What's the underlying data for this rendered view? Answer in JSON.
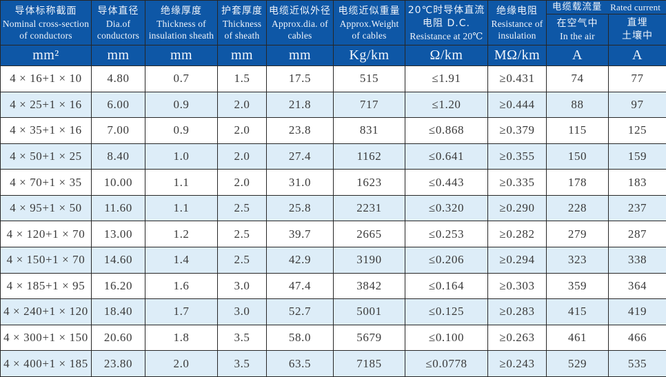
{
  "table": {
    "columns": [
      {
        "zh": "导体标称截面",
        "en": "Nominal cross-section of conductors",
        "unit": "mm²"
      },
      {
        "zh": "导体直径",
        "en": "Dia.of conductors",
        "unit": "mm"
      },
      {
        "zh": "绝缘厚度",
        "en": "Thickness of insulation sheath",
        "unit": "mm"
      },
      {
        "zh": "护套厚度",
        "en": "Thickness of sheath",
        "unit": "mm"
      },
      {
        "zh": "电缆近似外径",
        "en": "Approx.dia. of cables",
        "unit": "mm"
      },
      {
        "zh": "电缆近似重量",
        "en": "Approx.Weight of cables",
        "unit": "Kg/km"
      },
      {
        "zh": "20℃时导体直流电阻 D.C.",
        "en": "Resistance at 20℃",
        "unit": "Ω/km"
      },
      {
        "zh": "绝缘电阻",
        "en": "Resistance of insulation",
        "unit": "MΩ/km"
      }
    ],
    "rated_group": {
      "zh": "电缆载流量",
      "en": "Rated current",
      "sub": [
        {
          "zh": "在空气中",
          "en": "In the air",
          "unit": "A"
        },
        {
          "zh": "直埋",
          "en": "土壤中",
          "unit": "A"
        }
      ]
    },
    "rows": [
      [
        "4 × 16+1 × 10",
        "4.80",
        "0.7",
        "1.5",
        "17.5",
        "515",
        "≤1.91",
        "≥0.431",
        "74",
        "77"
      ],
      [
        "4 × 25+1 × 16",
        "6.00",
        "0.9",
        "2.0",
        "21.8",
        "717",
        "≤1.20",
        "≥0.444",
        "88",
        "97"
      ],
      [
        "4 × 35+1 × 16",
        "7.00",
        "0.9",
        "2.0",
        "23.8",
        "831",
        "≤0.868",
        "≥0.379",
        "115",
        "125"
      ],
      [
        "4 × 50+1 × 25",
        "8.40",
        "1.0",
        "2.0",
        "27.4",
        "1162",
        "≤0.641",
        "≥0.355",
        "150",
        "159"
      ],
      [
        "4 × 70+1 × 35",
        "10.00",
        "1.1",
        "2.0",
        "31.0",
        "1623",
        "≤0.443",
        "≥0.335",
        "178",
        "183"
      ],
      [
        "4 × 95+1 × 50",
        "11.60",
        "1.1",
        "2.5",
        "25.8",
        "2231",
        "≤0.320",
        "≥0.290",
        "228",
        "237"
      ],
      [
        "4 × 120+1 × 70",
        "13.00",
        "1.2",
        "2.5",
        "39.7",
        "2665",
        "≤0.253",
        "≥0.282",
        "279",
        "287"
      ],
      [
        "4 × 150+1 × 70",
        "14.60",
        "1.4",
        "2.5",
        "42.9",
        "3190",
        "≤0.206",
        "≥0.294",
        "323",
        "338"
      ],
      [
        "4 × 185+1 × 95",
        "16.20",
        "1.6",
        "3.0",
        "47.4",
        "3842",
        "≤0.164",
        "≥0.303",
        "359",
        "364"
      ],
      [
        "4 × 240+1 × 120",
        "18.40",
        "1.7",
        "3.0",
        "52.7",
        "5001",
        "≤0.125",
        "≥0.283",
        "415",
        "419"
      ],
      [
        "4 × 300+1 × 150",
        "20.60",
        "1.8",
        "3.5",
        "58.0",
        "5679",
        "≤0.100",
        "≥0.263",
        "461",
        "466"
      ],
      [
        "4 × 400+1 × 185",
        "23.80",
        "2.0",
        "3.5",
        "63.5",
        "7185",
        "≤0.0778",
        "≥0.243",
        "529",
        "535"
      ]
    ]
  },
  "colors": {
    "header_bg": "#0e57a6",
    "header_text": "#eef3fa",
    "stripe_bg": "#ddedf8",
    "row_bg": "#ffffff",
    "border": "#262626",
    "body_text": "#3a3a3a"
  }
}
